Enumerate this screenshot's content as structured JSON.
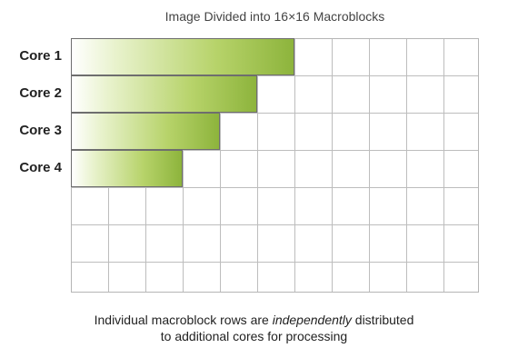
{
  "title": "Image Divided into 16×16 Macroblocks",
  "cores": [
    {
      "label": "Core 1",
      "filled_columns": 6
    },
    {
      "label": "Core 2",
      "filled_columns": 5
    },
    {
      "label": "Core 3",
      "filled_columns": 4
    },
    {
      "label": "Core 4",
      "filled_columns": 3
    }
  ],
  "grid": {
    "columns": 11,
    "rows": 7
  },
  "caption": {
    "line1_before": "Individual macroblock rows are ",
    "line1_emphasis": "independently",
    "line1_after": " distributed",
    "line2": "to additional cores for processing"
  },
  "colors": {
    "bar_light": "#e8f2cc",
    "bar_dark": "#8db43c",
    "grid_line": "#bdbdbd"
  }
}
